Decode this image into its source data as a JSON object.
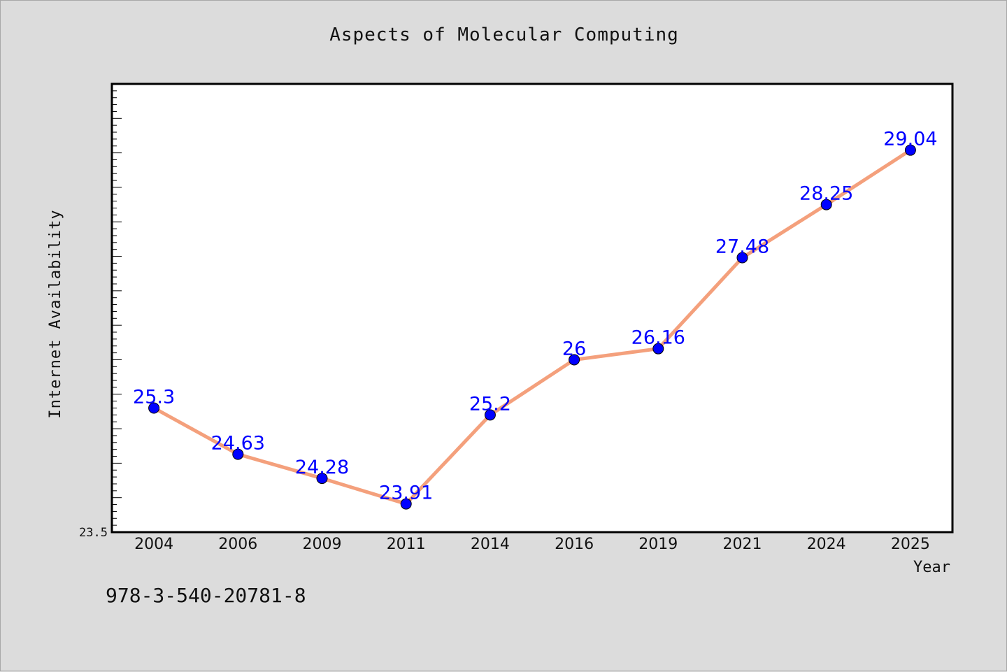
{
  "chart_data": {
    "type": "line",
    "title": "Aspects of Molecular Computing",
    "xlabel": "Year",
    "ylabel": "Internet Availability",
    "categories": [
      "2004",
      "2006",
      "2009",
      "2011",
      "2014",
      "2016",
      "2019",
      "2021",
      "2024",
      "2025"
    ],
    "series": [
      {
        "values": [
          25.3,
          24.63,
          24.28,
          23.91,
          25.2,
          26,
          26.16,
          27.48,
          28.25,
          29.04
        ],
        "data_labels": [
          "25.3",
          "24.63",
          "24.28",
          "23.91",
          "25.2",
          "26",
          "26.16",
          "27.48",
          "28.25",
          "29.04"
        ],
        "line_color": "#f4a07c",
        "marker_color": "#0000ff"
      }
    ],
    "y_tick_labels": [
      "23.5"
    ],
    "ylim": [
      23.5,
      30
    ],
    "grid": false,
    "legend": "none",
    "label_color": "#0000ff"
  },
  "footer_code": "978-3-540-20781-8"
}
